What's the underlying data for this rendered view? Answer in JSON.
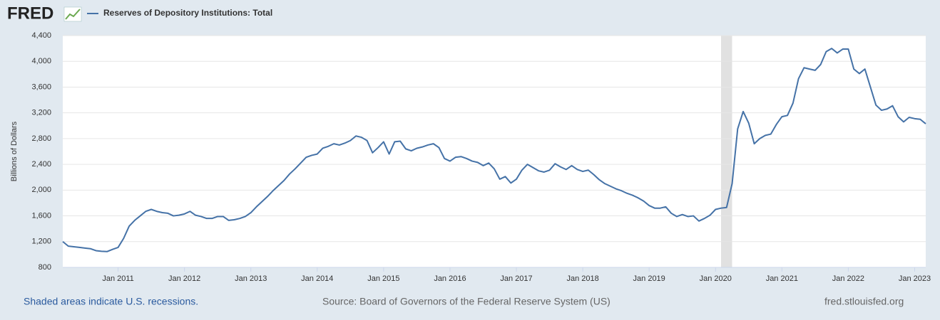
{
  "header": {
    "logo": "FRED"
  },
  "chart_data": {
    "type": "line",
    "y_label": "Billions of Dollars",
    "x": [
      "2010-03",
      "2010-04",
      "2010-05",
      "2010-06",
      "2010-07",
      "2010-08",
      "2010-09",
      "2010-10",
      "2010-11",
      "2010-12",
      "2011-01",
      "2011-02",
      "2011-03",
      "2011-04",
      "2011-05",
      "2011-06",
      "2011-07",
      "2011-08",
      "2011-09",
      "2011-10",
      "2011-11",
      "2011-12",
      "2012-01",
      "2012-02",
      "2012-03",
      "2012-04",
      "2012-05",
      "2012-06",
      "2012-07",
      "2012-08",
      "2012-09",
      "2012-10",
      "2012-11",
      "2012-12",
      "2013-01",
      "2013-02",
      "2013-03",
      "2013-04",
      "2013-05",
      "2013-06",
      "2013-07",
      "2013-08",
      "2013-09",
      "2013-10",
      "2013-11",
      "2013-12",
      "2014-01",
      "2014-02",
      "2014-03",
      "2014-04",
      "2014-05",
      "2014-06",
      "2014-07",
      "2014-08",
      "2014-09",
      "2014-10",
      "2014-11",
      "2014-12",
      "2015-01",
      "2015-02",
      "2015-03",
      "2015-04",
      "2015-05",
      "2015-06",
      "2015-07",
      "2015-08",
      "2015-09",
      "2015-10",
      "2015-11",
      "2015-12",
      "2016-01",
      "2016-02",
      "2016-03",
      "2016-04",
      "2016-05",
      "2016-06",
      "2016-07",
      "2016-08",
      "2016-09",
      "2016-10",
      "2016-11",
      "2016-12",
      "2017-01",
      "2017-02",
      "2017-03",
      "2017-04",
      "2017-05",
      "2017-06",
      "2017-07",
      "2017-08",
      "2017-09",
      "2017-10",
      "2017-11",
      "2017-12",
      "2018-01",
      "2018-02",
      "2018-03",
      "2018-04",
      "2018-05",
      "2018-06",
      "2018-07",
      "2018-08",
      "2018-09",
      "2018-10",
      "2018-11",
      "2018-12",
      "2019-01",
      "2019-02",
      "2019-03",
      "2019-04",
      "2019-05",
      "2019-06",
      "2019-07",
      "2019-08",
      "2019-09",
      "2019-10",
      "2019-11",
      "2019-12",
      "2020-01",
      "2020-02",
      "2020-03",
      "2020-04",
      "2020-05",
      "2020-06",
      "2020-07",
      "2020-08",
      "2020-09",
      "2020-10",
      "2020-11",
      "2020-12",
      "2021-01",
      "2021-02",
      "2021-03",
      "2021-04",
      "2021-05",
      "2021-06",
      "2021-07",
      "2021-08",
      "2021-09",
      "2021-10",
      "2021-11",
      "2021-12",
      "2022-01",
      "2022-02",
      "2022-03",
      "2022-04",
      "2022-05",
      "2022-06",
      "2022-07",
      "2022-08",
      "2022-09",
      "2022-10",
      "2022-11",
      "2022-12",
      "2023-01",
      "2023-02",
      "2023-03"
    ],
    "series": [
      {
        "name": "Reserves of Depository Institutions: Total",
        "color": "#4572a7",
        "values": [
          1200,
          1130,
          1120,
          1110,
          1100,
          1090,
          1060,
          1050,
          1045,
          1080,
          1110,
          1250,
          1440,
          1530,
          1600,
          1670,
          1700,
          1670,
          1650,
          1640,
          1600,
          1610,
          1630,
          1670,
          1610,
          1590,
          1560,
          1560,
          1590,
          1590,
          1530,
          1540,
          1560,
          1590,
          1650,
          1740,
          1820,
          1900,
          1990,
          2070,
          2150,
          2250,
          2330,
          2420,
          2510,
          2540,
          2560,
          2650,
          2680,
          2720,
          2700,
          2730,
          2770,
          2840,
          2820,
          2770,
          2580,
          2660,
          2750,
          2560,
          2750,
          2760,
          2640,
          2610,
          2650,
          2670,
          2700,
          2720,
          2660,
          2490,
          2450,
          2510,
          2520,
          2490,
          2450,
          2430,
          2380,
          2420,
          2330,
          2170,
          2210,
          2110,
          2170,
          2310,
          2400,
          2350,
          2300,
          2280,
          2310,
          2410,
          2360,
          2320,
          2380,
          2320,
          2290,
          2310,
          2240,
          2160,
          2100,
          2060,
          2020,
          1990,
          1950,
          1920,
          1880,
          1830,
          1760,
          1720,
          1720,
          1740,
          1640,
          1590,
          1620,
          1590,
          1600,
          1520,
          1560,
          1610,
          1700,
          1720,
          1730,
          2100,
          2950,
          3220,
          3040,
          2720,
          2800,
          2850,
          2870,
          3020,
          3140,
          3160,
          3350,
          3730,
          3900,
          3880,
          3860,
          3950,
          4150,
          4200,
          4130,
          4190,
          4190,
          3880,
          3810,
          3880,
          3600,
          3320,
          3240,
          3260,
          3310,
          3140,
          3060,
          3130,
          3110,
          3100,
          3030
        ]
      }
    ],
    "xlim": [
      "2010-03",
      "2023-03"
    ],
    "xticks": [
      {
        "value": "2011-01",
        "label": "Jan 2011"
      },
      {
        "value": "2012-01",
        "label": "Jan 2012"
      },
      {
        "value": "2013-01",
        "label": "Jan 2013"
      },
      {
        "value": "2014-01",
        "label": "Jan 2014"
      },
      {
        "value": "2015-01",
        "label": "Jan 2015"
      },
      {
        "value": "2016-01",
        "label": "Jan 2016"
      },
      {
        "value": "2017-01",
        "label": "Jan 2017"
      },
      {
        "value": "2018-01",
        "label": "Jan 2018"
      },
      {
        "value": "2019-01",
        "label": "Jan 2019"
      },
      {
        "value": "2020-01",
        "label": "Jan 2020"
      },
      {
        "value": "2021-01",
        "label": "Jan 2021"
      },
      {
        "value": "2022-01",
        "label": "Jan 2022"
      },
      {
        "value": "2023-01",
        "label": "Jan 2023"
      }
    ],
    "ylim": [
      800,
      4400
    ],
    "yticks": [
      800,
      {
        "value": 1200,
        "label": "1,200"
      },
      {
        "value": 1600,
        "label": "1,600"
      },
      {
        "value": 2000,
        "label": "2,000"
      },
      {
        "value": 2400,
        "label": "2,400"
      },
      {
        "value": 2800,
        "label": "2,800"
      },
      {
        "value": 3200,
        "label": "3,200"
      },
      {
        "value": 3600,
        "label": "3,600"
      },
      {
        "value": 4000,
        "label": "4,000"
      },
      {
        "value": 4400,
        "label": "4,400"
      }
    ],
    "grid": true,
    "recessions": [
      {
        "start": "2020-02",
        "end": "2020-04"
      }
    ]
  },
  "footer": {
    "note": "Shaded areas indicate U.S. recessions.",
    "source": "Source: Board of Governors of the Federal Reserve System (US)",
    "site": "fred.stlouisfed.org"
  }
}
